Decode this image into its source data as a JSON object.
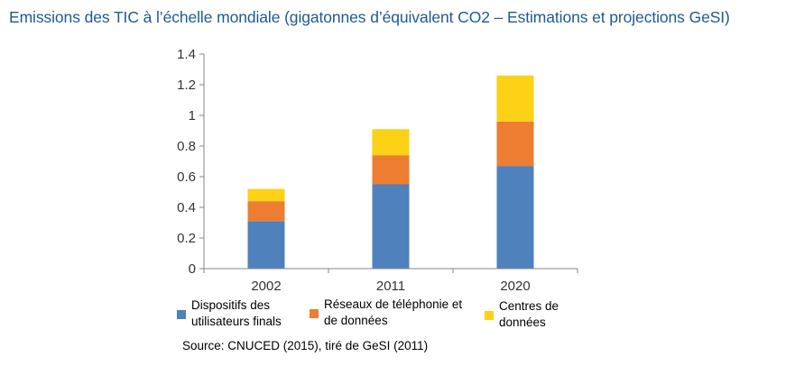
{
  "chart_data": {
    "type": "bar",
    "stacked": true,
    "title": "Emissions des TIC à l’échelle mondiale (gigatonnes d’équivalent CO2 – Estimations et projections GeSI)",
    "categories": [
      "2002",
      "2011",
      "2020"
    ],
    "series": [
      {
        "name": "Dispositifs des utilisateurs finals",
        "values": [
          0.31,
          0.55,
          0.67
        ],
        "color": "#4f81bd"
      },
      {
        "name": "Réseaux de téléphonie et de données",
        "values": [
          0.13,
          0.19,
          0.29
        ],
        "color": "#ed7d31"
      },
      {
        "name": "Centres de données",
        "values": [
          0.08,
          0.17,
          0.3
        ],
        "color": "#fcd116"
      }
    ],
    "ylim": [
      0,
      1.4
    ],
    "yticks": [
      "0",
      "0.2",
      "0.4",
      "0.6",
      "0.8",
      "1",
      "1.2",
      "1.4"
    ],
    "grid": false,
    "legend_position": "bottom",
    "source": "Source: CNUCED (2015), tiré de GeSI (2011)"
  },
  "legend": [
    {
      "line1": "Dispositifs des",
      "line2": "utilisateurs finals"
    },
    {
      "line1": "Réseaux de téléphonie et",
      "line2": "de données"
    },
    {
      "line1": "Centres de",
      "line2": "données"
    }
  ]
}
